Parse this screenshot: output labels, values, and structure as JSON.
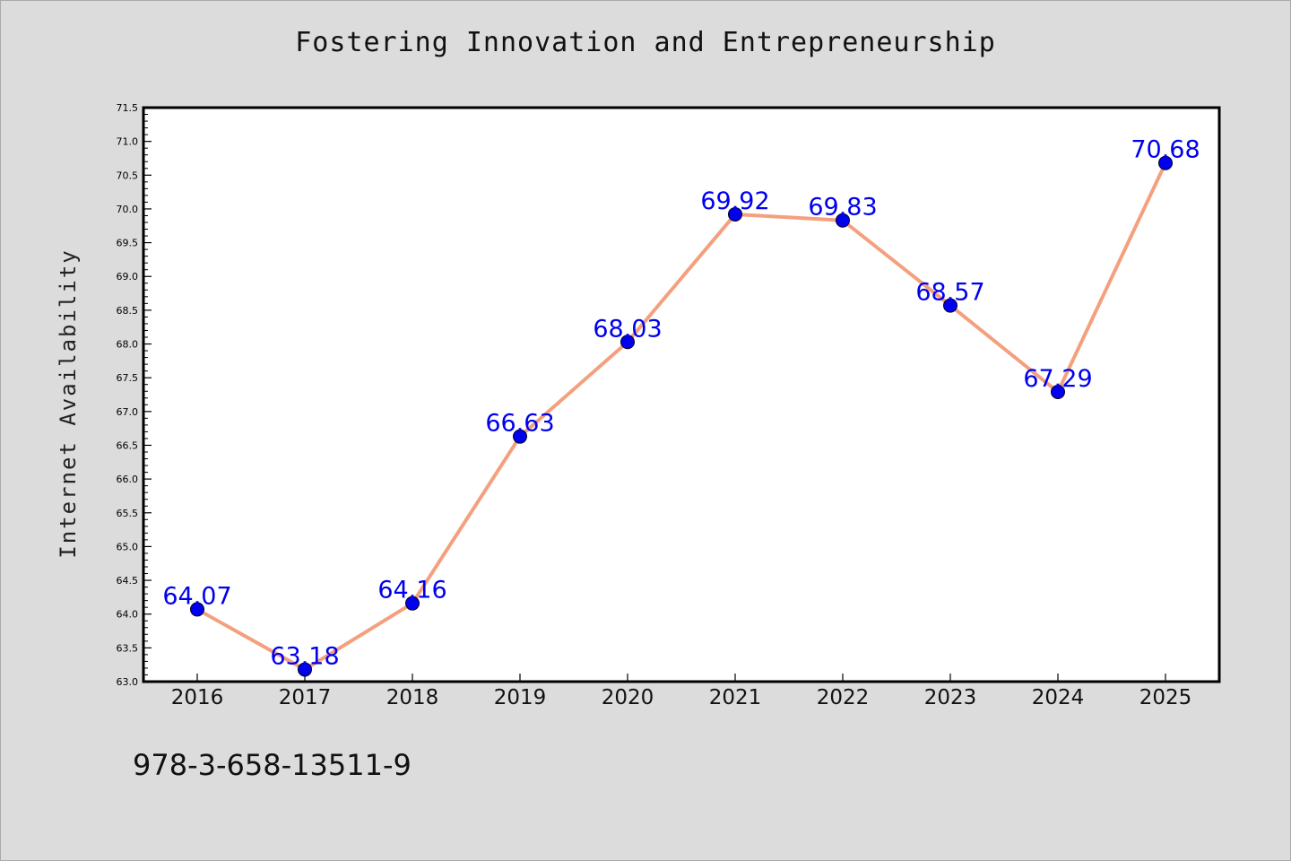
{
  "chart_data": {
    "type": "line",
    "title": "Fostering Innovation and Entrepreneurship",
    "xlabel": "",
    "ylabel": "Internet Availability",
    "categories": [
      "2016",
      "2017",
      "2018",
      "2019",
      "2020",
      "2021",
      "2022",
      "2023",
      "2024",
      "2025"
    ],
    "series": [
      {
        "values": [
          64.07,
          63.18,
          64.16,
          66.63,
          68.03,
          69.92,
          69.83,
          68.57,
          67.29,
          70.68
        ],
        "labels": [
          "64.07",
          "63.18",
          "64.16",
          "66.63",
          "68.03",
          "69.92",
          "69.83",
          "68.57",
          "67.29",
          "70.68"
        ],
        "line_color": "#f4a07e",
        "marker_color": "#0000ee",
        "label_color": "#0000ee"
      }
    ],
    "ylim": [
      63.0,
      71.5
    ],
    "yticks": [
      "63.0",
      "63.5",
      "64.0",
      "64.5",
      "65.0",
      "65.5",
      "66.0",
      "66.5",
      "67.0",
      "67.5",
      "68.0",
      "68.5",
      "69.0",
      "69.5",
      "70.0",
      "70.5",
      "71.0",
      "71.5"
    ],
    "grid": false,
    "legend": "none"
  },
  "footer": {
    "text": "978-3-658-13511-9"
  }
}
